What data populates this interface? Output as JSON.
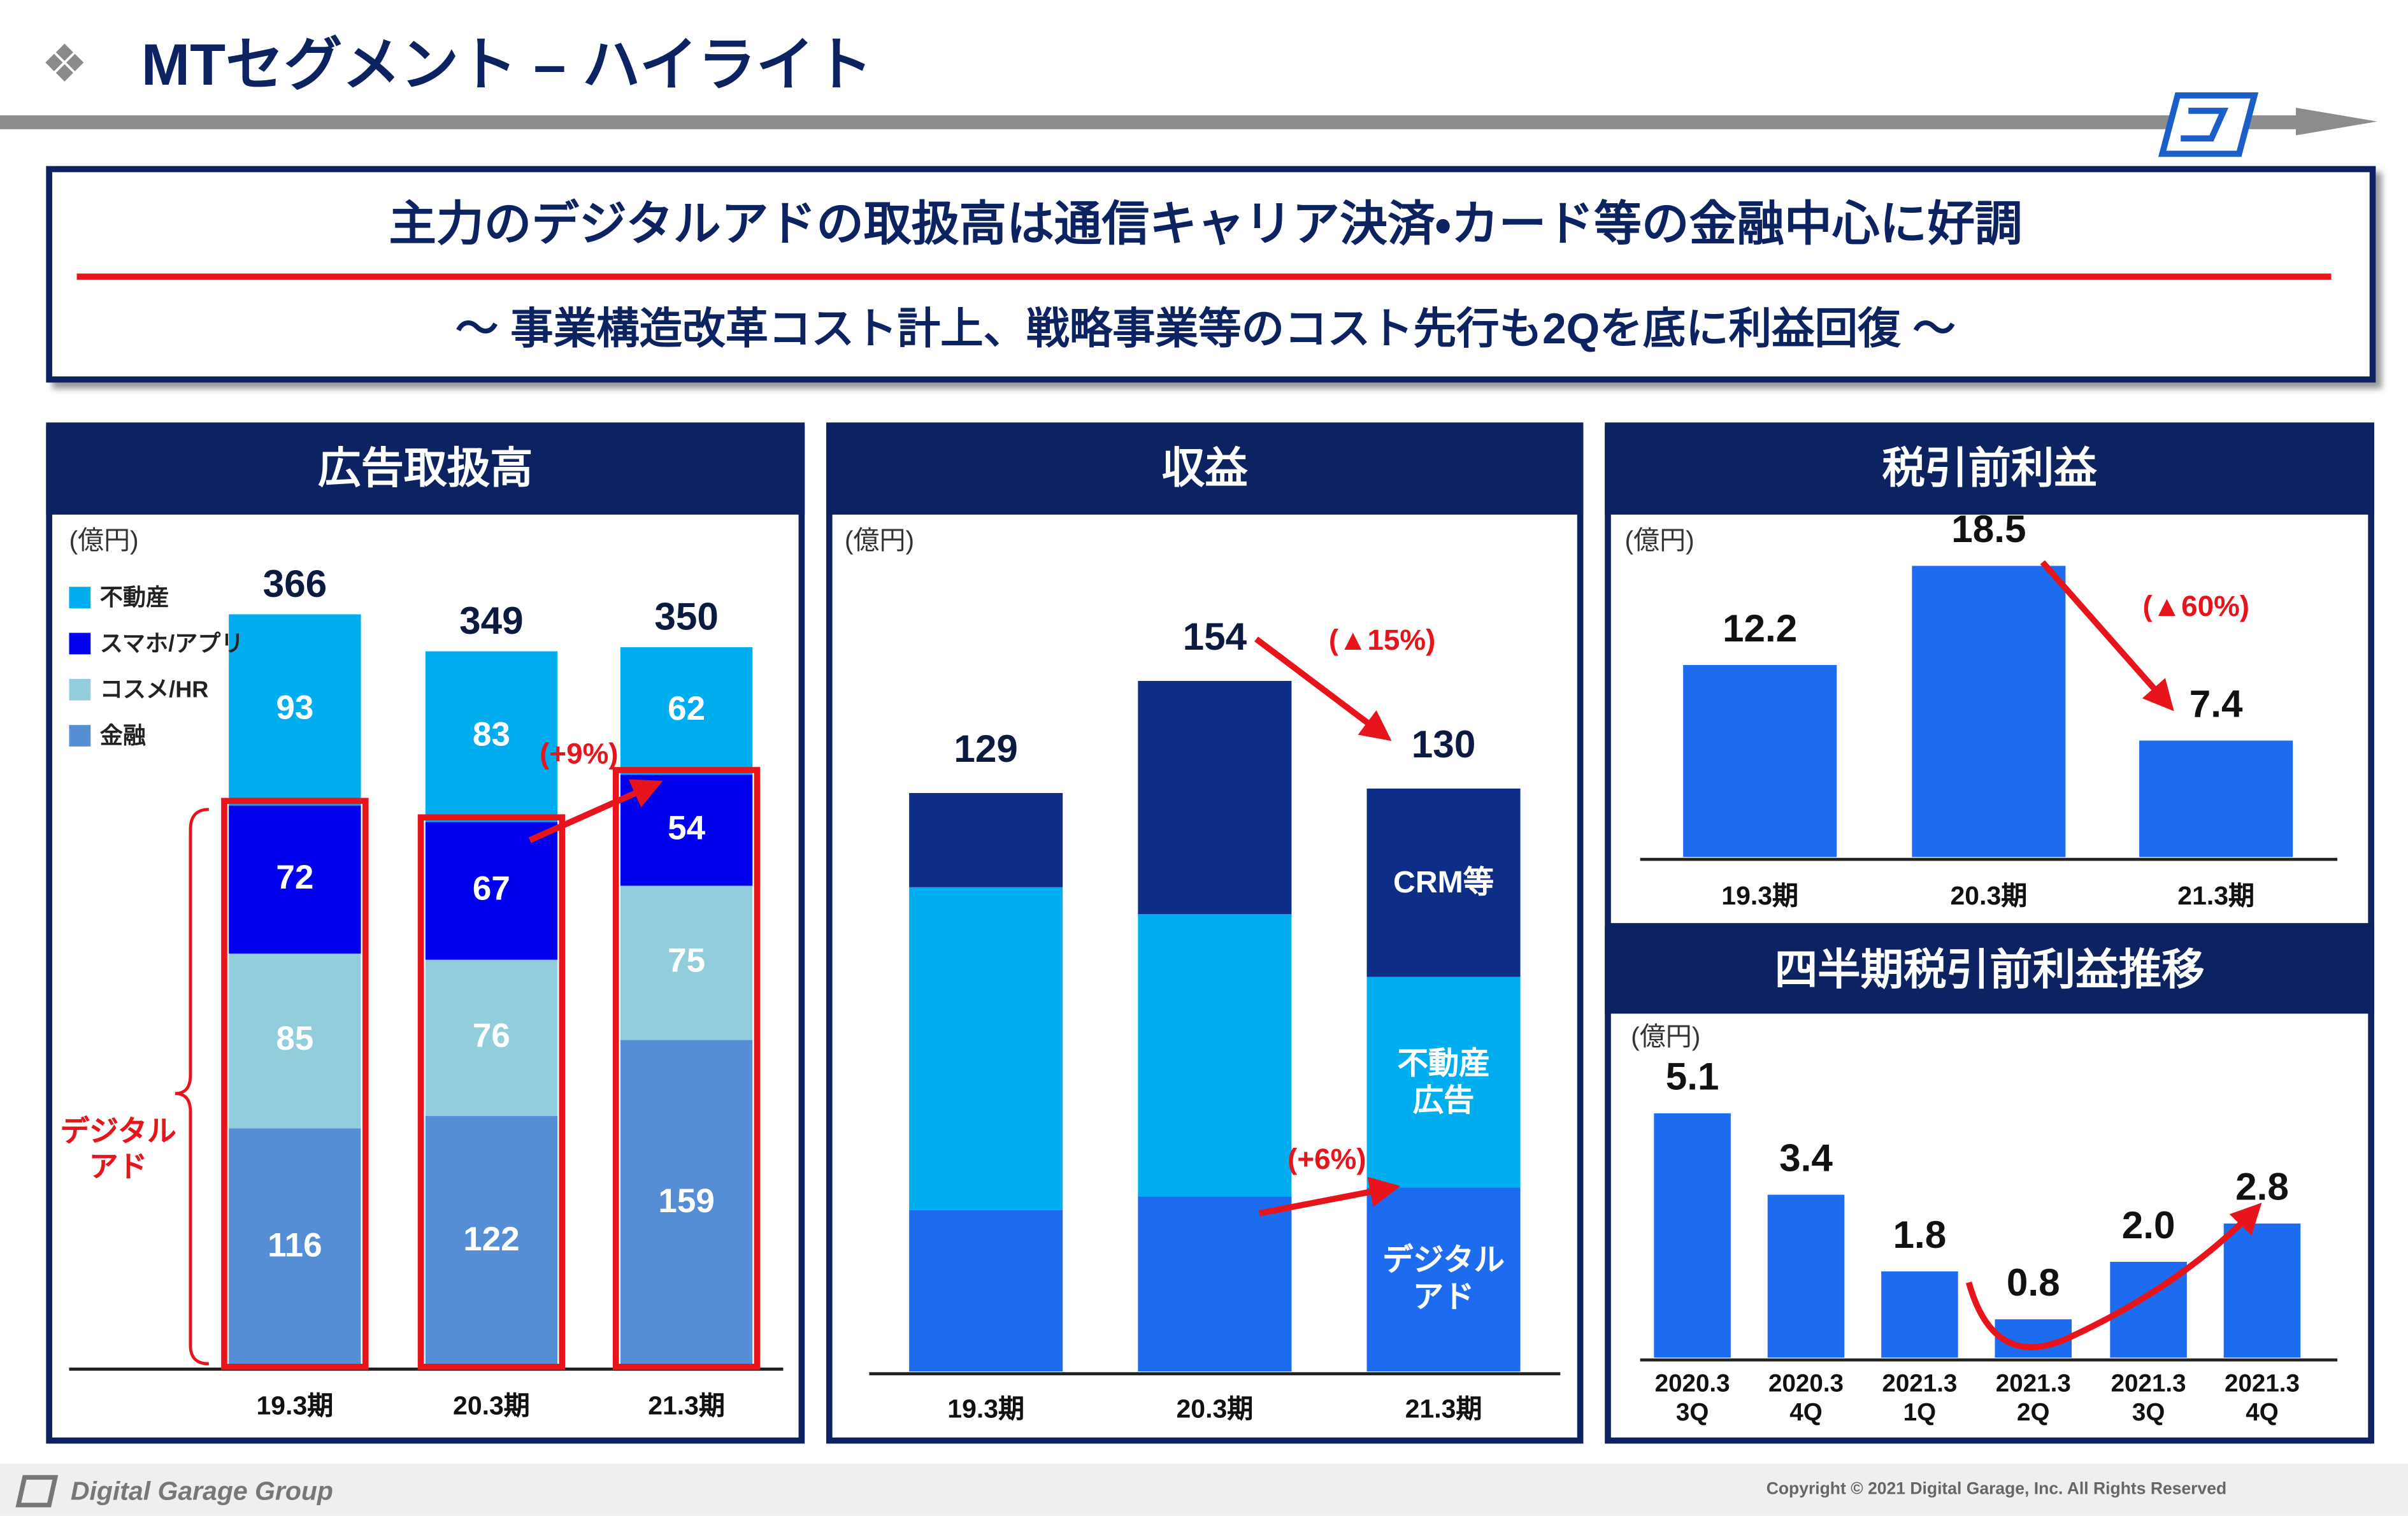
{
  "header": {
    "title": "MTセグメント – ハイライト",
    "headline": "主力のデジタルアドの取扱高は通信キャリア決済・カード等の金融中心に好調",
    "subheadline": "～ 事業構造改革コスト計上、戦略事業等のコスト先行も2Qを底に利益回復 ～"
  },
  "chart_data": [
    {
      "type": "stacked-bar",
      "title": "広告取扱高",
      "unit": "(億円)",
      "categories": [
        "19.3期",
        "20.3期",
        "21.3期"
      ],
      "series": [
        {
          "name": "不動産",
          "color": "#00aeef",
          "values": [
            93,
            83,
            62
          ]
        },
        {
          "name": "スマホ/アプリ",
          "color": "#0000ee",
          "values": [
            72,
            67,
            54
          ]
        },
        {
          "name": "コスメ/HR",
          "color": "#92cddc",
          "values": [
            85,
            76,
            75
          ]
        },
        {
          "name": "金融",
          "color": "#558ed5",
          "values": [
            116,
            122,
            159
          ]
        }
      ],
      "totals": [
        366,
        349,
        350
      ],
      "segment_labels": true,
      "legend": "upper left",
      "annotations": [
        "(+9%)",
        "デジタル\nアド"
      ]
    },
    {
      "type": "stacked-bar",
      "title": "収益",
      "unit": "(億円)",
      "categories": [
        "19.3期",
        "20.3期",
        "21.3期"
      ],
      "series": [
        {
          "name": "CRM等",
          "color": "#0e2d86",
          "values": [
            21,
            52,
            42
          ]
        },
        {
          "name": "不動産\n広告",
          "color": "#00adef",
          "values": [
            72,
            63,
            47
          ]
        },
        {
          "name": "デジタル\nアド",
          "color": "#1d6cf0",
          "values": [
            36,
            39,
            41
          ]
        }
      ],
      "totals": [
        129,
        154,
        130
      ],
      "segment_labels": false,
      "legend": "inside last bar",
      "annotations": [
        "(▲15%)",
        "(+6%)"
      ]
    },
    {
      "type": "bar",
      "title": "税引前利益",
      "unit": "(億円)",
      "categories": [
        "19.3期",
        "20.3期",
        "21.3期"
      ],
      "values": [
        12.2,
        18.5,
        7.4
      ],
      "color": "#1d6cf0",
      "annotations": [
        "(▲60%)"
      ]
    },
    {
      "type": "bar",
      "title": "四半期税引前利益推移",
      "unit": "(億円)",
      "categories": [
        "2020.3\n3Q",
        "2020.3\n4Q",
        "2021.3\n1Q",
        "2021.3\n2Q",
        "2021.3\n3Q",
        "2021.3\n4Q"
      ],
      "values": [
        5.1,
        3.4,
        1.8,
        0.8,
        2.0,
        2.8
      ],
      "value_labels": [
        "5.1",
        "3.4",
        "1.8",
        "0.8",
        "2.0",
        "2.8"
      ],
      "color": "#1d6cf0",
      "annotations": []
    }
  ],
  "footer": {
    "brand": "Digital Garage Group",
    "copyright": "Copyright © 2021 Digital Garage, Inc. All Rights Reserved"
  }
}
